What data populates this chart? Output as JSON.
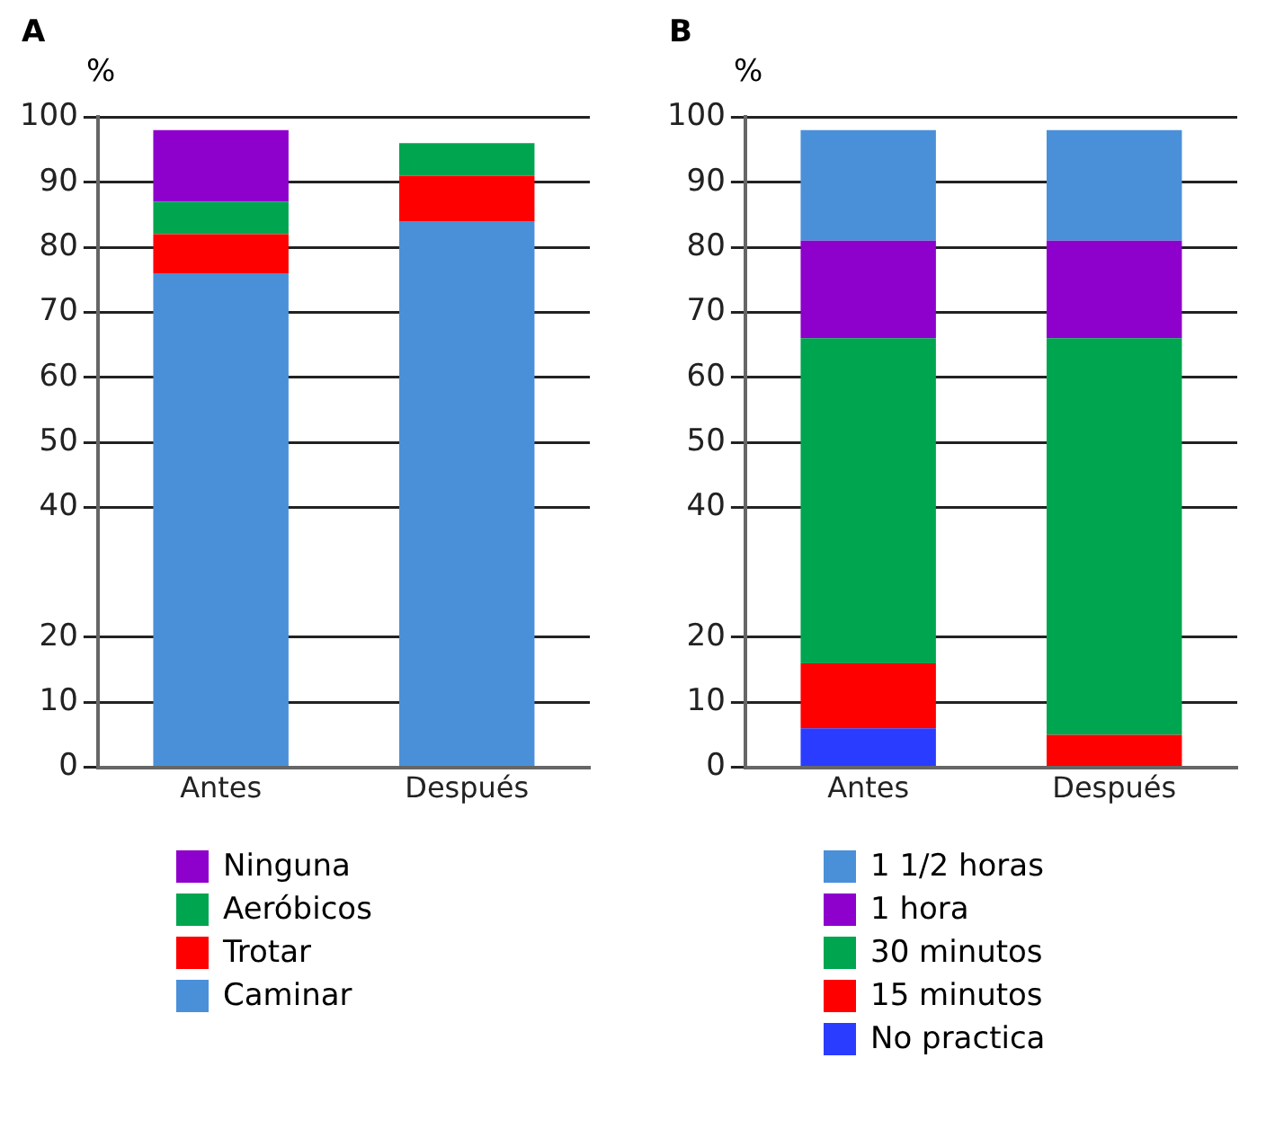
{
  "chart_data": [
    {
      "type": "bar",
      "title": "A",
      "ylabel": "%",
      "categories": [
        "Antes",
        "Después"
      ],
      "stacked": true,
      "ylim": [
        0,
        100
      ],
      "yticks": [
        0,
        10,
        20,
        40,
        50,
        60,
        70,
        80,
        90,
        100
      ],
      "grid": "y",
      "legend": "bottom",
      "series": [
        {
          "name": "Caminar",
          "color": "#4a90d9",
          "values": [
            76,
            84
          ]
        },
        {
          "name": "Trotar",
          "color": "#ff0000",
          "values": [
            6,
            7
          ]
        },
        {
          "name": "Aeróbicos",
          "color": "#00a550",
          "values": [
            5,
            5
          ]
        },
        {
          "name": "Ninguna",
          "color": "#8e00cc",
          "values": [
            11,
            0
          ]
        }
      ]
    },
    {
      "type": "bar",
      "title": "B",
      "ylabel": "%",
      "categories": [
        "Antes",
        "Después"
      ],
      "stacked": true,
      "ylim": [
        0,
        100
      ],
      "yticks": [
        0,
        10,
        20,
        40,
        50,
        60,
        70,
        80,
        90,
        100
      ],
      "grid": "y",
      "legend": "bottom",
      "series": [
        {
          "name": "No practica",
          "color": "#2a3cff",
          "values": [
            6,
            0
          ]
        },
        {
          "name": "15 minutos",
          "color": "#ff0000",
          "values": [
            10,
            5
          ]
        },
        {
          "name": "30 minutos",
          "color": "#00a550",
          "values": [
            50,
            61
          ]
        },
        {
          "name": "1 hora",
          "color": "#8e00cc",
          "values": [
            15,
            15
          ]
        },
        {
          "name": "1 1/2 horas",
          "color": "#4a90d9",
          "values": [
            17,
            17
          ]
        }
      ]
    }
  ]
}
